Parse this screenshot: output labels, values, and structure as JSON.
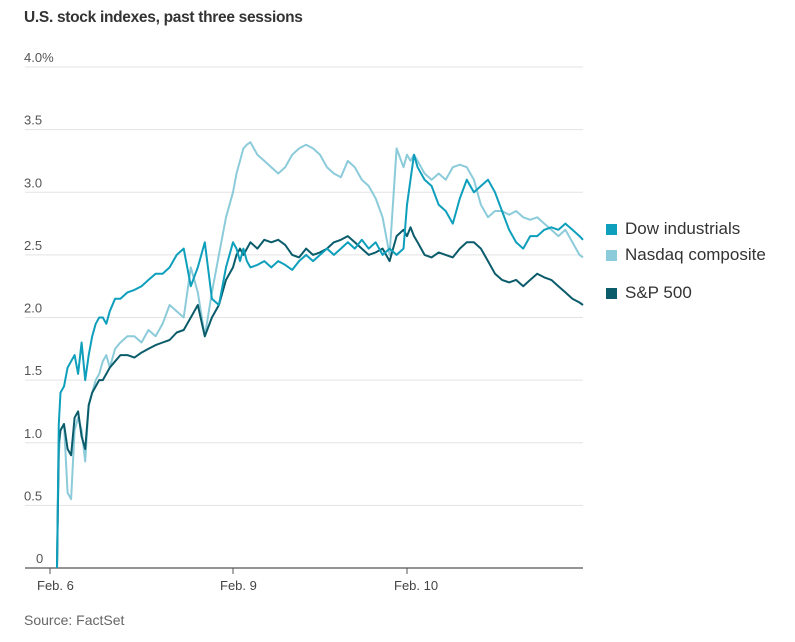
{
  "chart_data": {
    "type": "line",
    "title": "U.S. stock indexes, past three sessions",
    "source": "Source: FactSet",
    "xlabel": "",
    "ylabel": "",
    "ylim": [
      0,
      4.0
    ],
    "yticks": [
      {
        "value": 4.0,
        "label": "4.0%"
      },
      {
        "value": 3.5,
        "label": "3.5"
      },
      {
        "value": 3.0,
        "label": "3.0"
      },
      {
        "value": 2.5,
        "label": "2.5"
      },
      {
        "value": 2.0,
        "label": "2.0"
      },
      {
        "value": 1.5,
        "label": "1.5"
      },
      {
        "value": 1.0,
        "label": "1.0"
      },
      {
        "value": 0.5,
        "label": "0.5"
      },
      {
        "value": 0,
        "label": "0"
      }
    ],
    "xlim": [
      0,
      3.0
    ],
    "xticks": [
      {
        "value": 0.0,
        "label": "Feb. 6"
      },
      {
        "value": 1.0,
        "label": "Feb. 9"
      },
      {
        "value": 2.0,
        "label": "Feb. 10"
      }
    ],
    "grid": true,
    "legend_position": "right",
    "series": [
      {
        "name": "Dow industrials",
        "color": "#0e9fbc",
        "x": [
          0,
          0.01,
          0.02,
          0.04,
          0.06,
          0.08,
          0.1,
          0.12,
          0.14,
          0.16,
          0.18,
          0.2,
          0.22,
          0.24,
          0.26,
          0.28,
          0.3,
          0.33,
          0.36,
          0.4,
          0.44,
          0.48,
          0.52,
          0.56,
          0.6,
          0.64,
          0.68,
          0.72,
          0.76,
          0.8,
          0.84,
          0.88,
          0.92,
          0.96,
          1.0,
          1.02,
          1.04,
          1.06,
          1.08,
          1.1,
          1.14,
          1.18,
          1.22,
          1.26,
          1.3,
          1.34,
          1.38,
          1.42,
          1.46,
          1.5,
          1.54,
          1.58,
          1.62,
          1.66,
          1.7,
          1.74,
          1.78,
          1.82,
          1.86,
          1.9,
          1.94,
          1.98,
          2.0,
          2.02,
          2.04,
          2.06,
          2.08,
          2.1,
          2.14,
          2.18,
          2.22,
          2.26,
          2.3,
          2.34,
          2.38,
          2.42,
          2.46,
          2.5,
          2.54,
          2.58,
          2.62,
          2.66,
          2.7,
          2.74,
          2.78,
          2.82,
          2.86,
          2.9,
          2.94,
          2.98,
          3.0
        ],
        "y": [
          0,
          1.15,
          1.4,
          1.45,
          1.6,
          1.65,
          1.7,
          1.55,
          1.8,
          1.5,
          1.7,
          1.85,
          1.95,
          2.0,
          2.0,
          1.95,
          2.05,
          2.15,
          2.15,
          2.2,
          2.22,
          2.25,
          2.3,
          2.35,
          2.35,
          2.4,
          2.5,
          2.55,
          2.25,
          2.4,
          2.6,
          2.15,
          2.1,
          2.4,
          2.6,
          2.55,
          2.45,
          2.55,
          2.45,
          2.4,
          2.42,
          2.45,
          2.4,
          2.45,
          2.42,
          2.38,
          2.45,
          2.5,
          2.45,
          2.5,
          2.55,
          2.5,
          2.55,
          2.6,
          2.55,
          2.62,
          2.55,
          2.6,
          2.5,
          2.55,
          2.5,
          2.55,
          2.9,
          3.1,
          3.3,
          3.2,
          3.15,
          3.1,
          3.05,
          2.9,
          2.85,
          2.75,
          2.95,
          3.1,
          3.0,
          3.05,
          3.1,
          3.0,
          2.85,
          2.7,
          2.6,
          2.55,
          2.65,
          2.65,
          2.7,
          2.72,
          2.7,
          2.75,
          2.7,
          2.65,
          2.62
        ]
      },
      {
        "name": "Nasdaq composite",
        "color": "#8ccbda",
        "x": [
          0,
          0.01,
          0.02,
          0.04,
          0.06,
          0.08,
          0.1,
          0.12,
          0.14,
          0.16,
          0.18,
          0.2,
          0.22,
          0.24,
          0.26,
          0.28,
          0.3,
          0.33,
          0.36,
          0.4,
          0.44,
          0.48,
          0.52,
          0.56,
          0.6,
          0.64,
          0.68,
          0.72,
          0.76,
          0.8,
          0.84,
          0.88,
          0.92,
          0.96,
          1.0,
          1.02,
          1.04,
          1.06,
          1.08,
          1.1,
          1.14,
          1.18,
          1.22,
          1.26,
          1.3,
          1.34,
          1.38,
          1.42,
          1.46,
          1.5,
          1.54,
          1.58,
          1.62,
          1.66,
          1.7,
          1.74,
          1.78,
          1.82,
          1.86,
          1.9,
          1.94,
          1.98,
          2.0,
          2.02,
          2.04,
          2.06,
          2.08,
          2.1,
          2.14,
          2.18,
          2.22,
          2.26,
          2.3,
          2.34,
          2.38,
          2.42,
          2.46,
          2.5,
          2.54,
          2.58,
          2.62,
          2.66,
          2.7,
          2.74,
          2.78,
          2.82,
          2.86,
          2.9,
          2.94,
          2.98,
          3.0
        ],
        "y": [
          0,
          0.9,
          1.1,
          1.15,
          0.6,
          0.55,
          1.1,
          1.2,
          1.1,
          0.85,
          1.3,
          1.4,
          1.5,
          1.55,
          1.65,
          1.7,
          1.6,
          1.75,
          1.8,
          1.85,
          1.85,
          1.8,
          1.9,
          1.85,
          1.95,
          2.1,
          2.05,
          2.0,
          2.4,
          2.2,
          1.85,
          2.2,
          2.5,
          2.8,
          3.0,
          3.15,
          3.25,
          3.35,
          3.38,
          3.4,
          3.3,
          3.25,
          3.2,
          3.15,
          3.2,
          3.3,
          3.35,
          3.38,
          3.35,
          3.3,
          3.2,
          3.15,
          3.12,
          3.25,
          3.2,
          3.1,
          3.05,
          2.95,
          2.8,
          2.5,
          3.35,
          3.2,
          3.3,
          3.25,
          3.3,
          3.25,
          3.2,
          3.15,
          3.1,
          3.15,
          3.1,
          3.2,
          3.22,
          3.2,
          3.1,
          2.9,
          2.8,
          2.85,
          2.85,
          2.82,
          2.85,
          2.8,
          2.78,
          2.8,
          2.75,
          2.7,
          2.65,
          2.7,
          2.6,
          2.5,
          2.48
        ]
      },
      {
        "name": "S&P 500",
        "color": "#0b5c6b",
        "x": [
          0,
          0.01,
          0.02,
          0.04,
          0.06,
          0.08,
          0.1,
          0.12,
          0.14,
          0.16,
          0.18,
          0.2,
          0.22,
          0.24,
          0.26,
          0.28,
          0.3,
          0.33,
          0.36,
          0.4,
          0.44,
          0.48,
          0.52,
          0.56,
          0.6,
          0.64,
          0.68,
          0.72,
          0.76,
          0.8,
          0.84,
          0.88,
          0.92,
          0.96,
          1.0,
          1.02,
          1.04,
          1.06,
          1.08,
          1.1,
          1.14,
          1.18,
          1.22,
          1.26,
          1.3,
          1.34,
          1.38,
          1.42,
          1.46,
          1.5,
          1.54,
          1.58,
          1.62,
          1.66,
          1.7,
          1.74,
          1.78,
          1.82,
          1.86,
          1.9,
          1.94,
          1.98,
          2.0,
          2.02,
          2.04,
          2.06,
          2.08,
          2.1,
          2.14,
          2.18,
          2.22,
          2.26,
          2.3,
          2.34,
          2.38,
          2.42,
          2.46,
          2.5,
          2.54,
          2.58,
          2.62,
          2.66,
          2.7,
          2.74,
          2.78,
          2.82,
          2.86,
          2.9,
          2.94,
          2.98,
          3.0
        ],
        "y": [
          0,
          1.0,
          1.1,
          1.15,
          0.95,
          0.9,
          1.2,
          1.25,
          1.05,
          0.95,
          1.3,
          1.4,
          1.45,
          1.5,
          1.5,
          1.55,
          1.6,
          1.65,
          1.7,
          1.7,
          1.68,
          1.72,
          1.75,
          1.78,
          1.8,
          1.82,
          1.88,
          1.9,
          2.0,
          2.1,
          1.85,
          2.0,
          2.1,
          2.3,
          2.4,
          2.5,
          2.55,
          2.5,
          2.55,
          2.6,
          2.55,
          2.62,
          2.6,
          2.62,
          2.58,
          2.5,
          2.48,
          2.55,
          2.5,
          2.52,
          2.55,
          2.6,
          2.62,
          2.65,
          2.6,
          2.55,
          2.5,
          2.52,
          2.55,
          2.45,
          2.65,
          2.7,
          2.65,
          2.72,
          2.65,
          2.6,
          2.55,
          2.5,
          2.48,
          2.52,
          2.5,
          2.48,
          2.55,
          2.6,
          2.6,
          2.55,
          2.45,
          2.35,
          2.3,
          2.28,
          2.3,
          2.25,
          2.3,
          2.35,
          2.32,
          2.3,
          2.25,
          2.2,
          2.15,
          2.12,
          2.1
        ]
      }
    ]
  }
}
